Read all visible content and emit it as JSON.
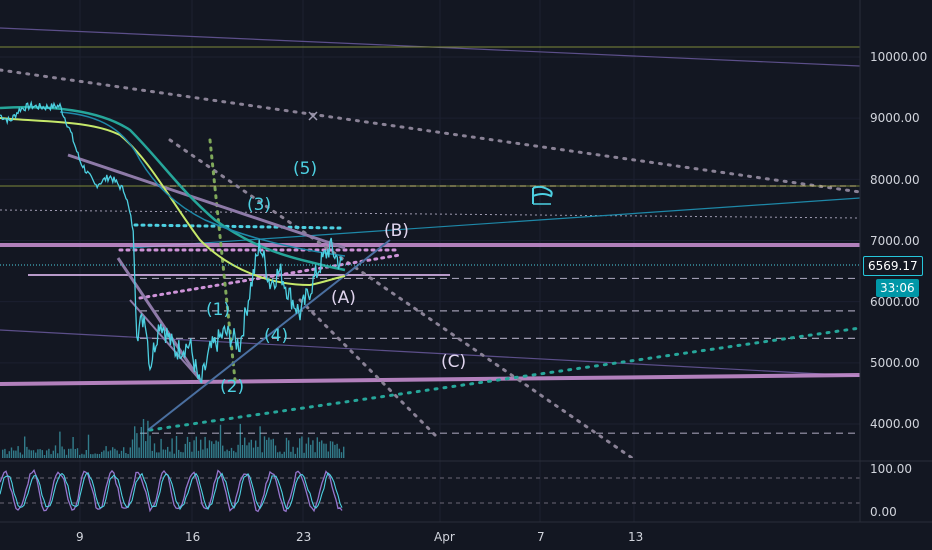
{
  "colors": {
    "background": "#131722",
    "grid": "#1e222d",
    "price_line": "#4dd0e1",
    "ma_fast": "#26a69a",
    "ma_slow": "#c6e86a",
    "trendline": "#ce93d8",
    "wave_label": "#4dd0e1",
    "correction_label": "#e0d5ee",
    "dashed_level": "#9e9ab0",
    "volume": "#4dd0e1",
    "osc_line1": "#9575cd",
    "osc_line2": "#4dd0e1",
    "flag_icon": "#4dd0e1"
  },
  "price_axis": {
    "ticks": [
      "10000.00",
      "9000.00",
      "8000.00",
      "7000.00",
      "6000.00",
      "5000.00",
      "4000.00"
    ],
    "current_price": "6569.17",
    "countdown": "33:06"
  },
  "oscillator_axis": {
    "ticks": [
      "100.00",
      "0.00"
    ]
  },
  "time_axis": {
    "ticks": [
      "9",
      "16",
      "23",
      "Apr",
      "7",
      "13"
    ]
  },
  "wave_labels": {
    "w1": "(1)",
    "w2": "(2)",
    "w3": "(3)",
    "w4": "(4)",
    "w5": "(5)",
    "wA": "(A)",
    "wB": "(B)",
    "wC": "(C)"
  },
  "icons": {
    "flag": "flag-icon",
    "cross_marker": "x-marker-icon"
  },
  "chart_data": {
    "type": "line",
    "title": "",
    "xlabel": "",
    "ylabel": "",
    "x_ticks": [
      "9",
      "16",
      "23",
      "Apr",
      "7",
      "13"
    ],
    "ylim": [
      3600,
      10600
    ],
    "y_ticks": [
      10000,
      9000,
      8000,
      7000,
      6000,
      5000,
      4000
    ],
    "current_price": 6569.17,
    "horizontal_levels": [
      10150,
      7870,
      6900,
      6590,
      6380,
      5850,
      5400,
      4720,
      3850
    ],
    "elliott_waves": [
      {
        "label": "(1)",
        "price": 5650
      },
      {
        "label": "(2)",
        "price": 4600
      },
      {
        "label": "(3)",
        "price": 6950
      },
      {
        "label": "(4)",
        "price": 5650
      },
      {
        "label": "(5)",
        "price": 8200
      },
      {
        "label": "(A)",
        "price": 6050
      },
      {
        "label": "(B)",
        "price": 6750
      },
      {
        "label": "(C)",
        "price": 5000
      }
    ],
    "oscillator": {
      "ylim": [
        0,
        100
      ],
      "ticks": [
        100,
        0
      ]
    },
    "grid": true,
    "legend": "none"
  }
}
